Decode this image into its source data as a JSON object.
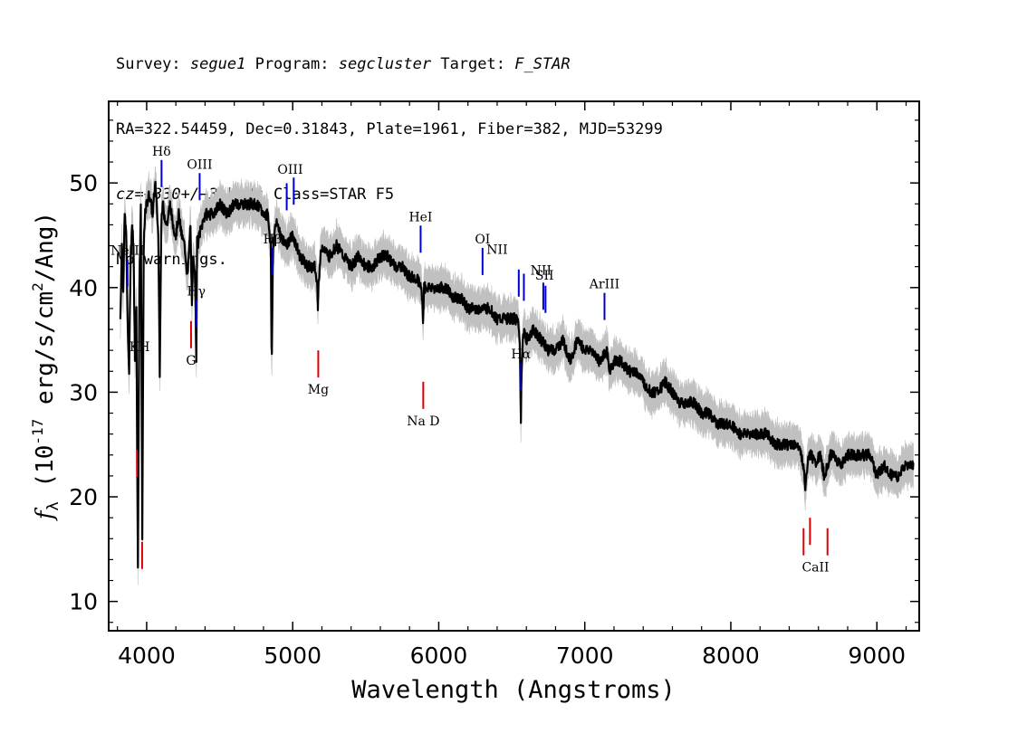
{
  "header": {
    "line1": {
      "survey_label": "Survey:",
      "survey": "segue1",
      "program_label": "Program:",
      "program": "segcluster",
      "target_label": "Target:",
      "target": "F_STAR"
    },
    "line2": "RA=322.54459, Dec=0.31843, Plate=1961, Fiber=382, MJD=53299",
    "line3": {
      "cz": "cz=−330+/−3",
      "rest": " km/s Class=STAR F5"
    },
    "line4": "No warnings."
  },
  "chart_data": {
    "type": "line",
    "xlabel": "Wavelength (Angstroms)",
    "ylabel": "f_λ (10^-17 erg/s/cm^2/Ang)",
    "xlim": [
      3740,
      9290
    ],
    "ylim": [
      7.2,
      57.8
    ],
    "xticks": [
      4000,
      5000,
      6000,
      7000,
      8000,
      9000
    ],
    "yticks": [
      10,
      20,
      30,
      40,
      50
    ],
    "colors": {
      "spectrum": "#000000",
      "error": "#c0c0c0",
      "emission": "#0000cc",
      "absorption": "#dd0000"
    },
    "series": [
      {
        "role": "spectrum",
        "x": [
          3820,
          3830,
          3840,
          3850,
          3860,
          3870,
          3880,
          3890,
          3900,
          3910,
          3920,
          3930,
          3940,
          3950,
          3960,
          3970,
          3980,
          3990,
          4000,
          4020,
          4040,
          4060,
          4080,
          4090,
          4100,
          4110,
          4120,
          4140,
          4160,
          4180,
          4200,
          4220,
          4240,
          4260,
          4280,
          4300,
          4310,
          4320,
          4330,
          4340,
          4345,
          4350,
          4360,
          4380,
          4400,
          4420,
          4450,
          4500,
          4550,
          4600,
          4650,
          4700,
          4750,
          4800,
          4830,
          4850,
          4856,
          4861,
          4866,
          4872,
          4880,
          4900,
          4920,
          4950,
          5000,
          5050,
          5100,
          5150,
          5170,
          5172,
          5175,
          5185,
          5200,
          5250,
          5300,
          5350,
          5400,
          5450,
          5500,
          5550,
          5600,
          5650,
          5700,
          5750,
          5800,
          5850,
          5880,
          5890,
          5893,
          5896,
          5900,
          5920,
          5950,
          6000,
          6050,
          6100,
          6150,
          6200,
          6250,
          6300,
          6350,
          6400,
          6450,
          6500,
          6540,
          6555,
          6560,
          6563,
          6566,
          6575,
          6590,
          6600,
          6650,
          6700,
          6750,
          6800,
          6850,
          6900,
          6950,
          7000,
          7050,
          7100,
          7150,
          7170,
          7200,
          7250,
          7300,
          7350,
          7400,
          7450,
          7500,
          7550,
          7600,
          7650,
          7700,
          7750,
          7800,
          7850,
          7900,
          7950,
          8000,
          8050,
          8100,
          8150,
          8200,
          8250,
          8300,
          8350,
          8400,
          8450,
          8480,
          8498,
          8510,
          8530,
          8542,
          8550,
          8580,
          8610,
          8640,
          8662,
          8680,
          8700,
          8750,
          8800,
          8850,
          8900,
          8950,
          9000,
          9050,
          9100,
          9150,
          9200,
          9250
        ],
        "y": [
          37,
          44,
          40,
          47,
          45,
          36,
          32,
          43,
          46,
          44,
          33,
          38,
          13,
          40,
          48,
          16,
          44,
          47,
          48,
          49,
          47,
          50,
          45,
          32,
          46,
          48,
          47,
          46,
          48,
          46,
          45,
          47,
          45,
          44,
          41,
          46,
          38,
          43,
          42,
          33,
          45,
          44,
          45,
          46,
          47,
          47,
          47,
          48,
          47,
          48,
          48,
          48,
          48,
          47,
          47,
          44,
          32,
          38,
          45,
          44,
          46,
          46,
          45,
          44,
          45,
          43,
          42,
          42,
          40,
          38,
          40,
          42,
          44,
          43,
          44,
          43,
          42,
          43,
          42,
          42,
          43,
          43,
          42,
          42,
          41,
          41,
          40,
          38,
          36,
          39,
          40,
          40,
          40,
          40,
          40,
          39,
          39,
          38,
          38,
          38,
          38,
          37,
          37,
          37,
          37,
          35,
          29,
          27,
          32,
          35,
          36,
          35,
          36,
          35,
          34,
          34,
          35,
          33,
          35,
          34,
          34,
          33,
          34,
          32,
          33,
          33,
          32,
          32,
          31,
          30,
          30,
          31,
          30,
          29,
          29,
          29,
          28,
          28,
          27,
          27,
          27,
          26,
          26,
          26,
          26,
          26,
          25,
          25,
          25,
          25,
          24,
          23,
          21,
          24,
          24,
          24,
          23,
          24,
          22,
          23,
          24,
          24,
          23,
          24,
          24,
          24,
          24,
          22,
          23,
          22,
          22,
          23,
          23
        ]
      }
    ],
    "emission_lines": [
      {
        "name": "NeIII",
        "wavelength": 3869
      },
      {
        "name": "Hδ",
        "wavelength": 4102
      },
      {
        "name": "Hγ",
        "wavelength": 4340
      },
      {
        "name": "OIII",
        "wavelength": 4363
      },
      {
        "name": "Hβ",
        "wavelength": 4861
      },
      {
        "name": "OIII",
        "wavelength": 4959
      },
      {
        "name": "OIII",
        "wavelength": 5007
      },
      {
        "name": "HeI",
        "wavelength": 5876
      },
      {
        "name": "OI",
        "wavelength": 6300
      },
      {
        "name": "NII",
        "wavelength": 6548
      },
      {
        "name": "Hα",
        "wavelength": 6563
      },
      {
        "name": "NII",
        "wavelength": 6583
      },
      {
        "name": "SII",
        "wavelength": 6716
      },
      {
        "name": "SII",
        "wavelength": 6731
      },
      {
        "name": "ArIII",
        "wavelength": 7135
      }
    ],
    "absorption_lines": [
      {
        "name": "K",
        "wavelength": 3934
      },
      {
        "name": "H",
        "wavelength": 3969
      },
      {
        "name": "G",
        "wavelength": 4304
      },
      {
        "name": "Mg",
        "wavelength": 5175
      },
      {
        "name": "Na D",
        "wavelength": 5894
      },
      {
        "name": "CaII",
        "wavelength": 8498
      },
      {
        "name": "CaII",
        "wavelength": 8542
      },
      {
        "name": "CaII",
        "wavelength": 8662
      }
    ],
    "line_labels": [
      {
        "text": "NeIII",
        "group": "emission",
        "wavelength": 3869
      },
      {
        "text": "Hδ",
        "group": "emission",
        "wavelength": 4102
      },
      {
        "text": "Hγ",
        "group": "emission",
        "wavelength": 4340
      },
      {
        "text": "OIII",
        "group": "emission",
        "wavelength": 4363
      },
      {
        "text": "Hβ",
        "group": "emission",
        "wavelength": 4861
      },
      {
        "text": "OIII",
        "group": "emission",
        "wavelength": 4983
      },
      {
        "text": "HeI",
        "group": "emission",
        "wavelength": 5876
      },
      {
        "text": "OI",
        "group": "emission",
        "wavelength": 6300
      },
      {
        "text": "NII",
        "group": "emission",
        "wavelength": 6400
      },
      {
        "text": "Hα",
        "group": "emission",
        "wavelength": 6563
      },
      {
        "text": "NII",
        "group": "emission",
        "wavelength": 6700
      },
      {
        "text": "SII",
        "group": "emission",
        "wavelength": 6724
      },
      {
        "text": "ArIII",
        "group": "emission",
        "wavelength": 7135
      },
      {
        "text": "KH",
        "group": "absorption",
        "wavelength": 3952
      },
      {
        "text": "G",
        "group": "absorption",
        "wavelength": 4304
      },
      {
        "text": "Mg",
        "group": "absorption",
        "wavelength": 5175
      },
      {
        "text": "Na  D",
        "group": "absorption",
        "wavelength": 5894
      },
      {
        "text": "CaII",
        "group": "absorption",
        "wavelength": 8580
      }
    ]
  }
}
